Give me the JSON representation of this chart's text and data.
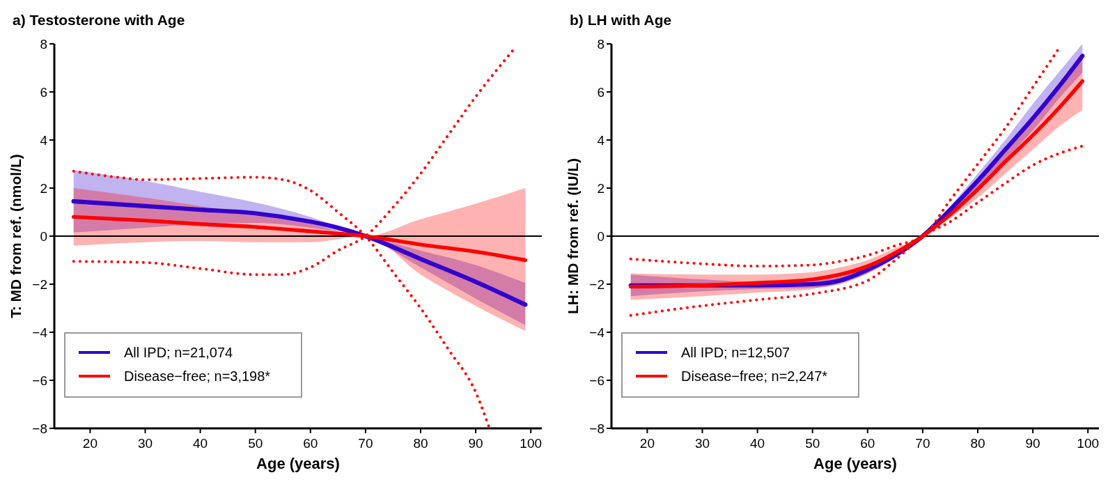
{
  "chart_data": [
    {
      "type": "line",
      "title": "a) Testosterone with Age",
      "xlabel": "Age (years)",
      "ylabel": "T: MD from ref. (nmol/L)",
      "xlim": [
        13.5,
        102
      ],
      "xticks": [
        20,
        30,
        40,
        50,
        60,
        70,
        80,
        90,
        100
      ],
      "ylim": [
        -8,
        8
      ],
      "yticks": [
        -8,
        -6,
        -4,
        -2,
        0,
        2,
        4,
        6,
        8
      ],
      "grid": false,
      "legend": "bottom left",
      "ref_lines": [
        {
          "axis": "y",
          "value": 0,
          "color": "#000000"
        }
      ],
      "series": [
        {
          "name": "All IPD; n=21,074",
          "color": "#3300cc",
          "line_style": "solid",
          "x": [
            17,
            30,
            40,
            50,
            60,
            65,
            70,
            80,
            90,
            99
          ],
          "values": [
            1.45,
            1.25,
            1.1,
            0.95,
            0.6,
            0.35,
            0,
            -0.95,
            -1.9,
            -2.85
          ],
          "lower": [
            0.15,
            0.35,
            0.5,
            0.55,
            0.35,
            0.2,
            0,
            -0.6,
            -1.2,
            -1.95
          ],
          "upper": [
            2.75,
            2.3,
            1.85,
            1.4,
            0.8,
            0.4,
            0,
            -1.3,
            -2.6,
            -3.7
          ]
        },
        {
          "name": "Disease−free; n=3,198*",
          "color": "#ff0000",
          "line_style": "solid",
          "x": [
            17,
            30,
            40,
            50,
            60,
            70,
            80,
            90,
            99
          ],
          "values": [
            0.8,
            0.65,
            0.5,
            0.38,
            0.2,
            0,
            -0.35,
            -0.65,
            -1.0
          ],
          "lower": [
            -0.4,
            -0.25,
            -0.2,
            -0.25,
            -0.25,
            0,
            -1.6,
            -2.9,
            -3.95
          ],
          "upper": [
            2.0,
            1.6,
            1.25,
            0.9,
            0.5,
            0,
            0.7,
            1.35,
            2.0
          ]
        },
        {
          "color": "#ff0000",
          "line_style": "dotted",
          "x": [
            17,
            25,
            30,
            40,
            50,
            55,
            60,
            65,
            70,
            75,
            80,
            85,
            90,
            92.5
          ],
          "values": [
            2.7,
            2.45,
            2.35,
            2.4,
            2.45,
            2.35,
            1.9,
            1.0,
            0,
            -1.5,
            -3.0,
            -4.7,
            -6.5,
            -8
          ]
        },
        {
          "color": "#ff0000",
          "line_style": "dotted",
          "x": [
            17,
            30,
            40,
            50,
            55,
            60,
            65,
            70,
            75,
            80,
            85,
            90,
            97
          ],
          "values": [
            -1.05,
            -1.1,
            -1.35,
            -1.6,
            -1.6,
            -1.3,
            -0.6,
            0,
            1.2,
            2.6,
            4.2,
            5.8,
            7.8
          ]
        }
      ]
    },
    {
      "type": "line",
      "title": "b) LH with Age",
      "xlabel": "Age (years)",
      "ylabel": "LH: MD from ref. (IU/L)",
      "xlim": [
        13.5,
        102
      ],
      "xticks": [
        20,
        30,
        40,
        50,
        60,
        70,
        80,
        90,
        100
      ],
      "ylim": [
        -8,
        8
      ],
      "yticks": [
        -8,
        -6,
        -4,
        -2,
        0,
        2,
        4,
        6,
        8
      ],
      "grid": false,
      "legend": "bottom left",
      "ref_lines": [
        {
          "axis": "y",
          "value": 0,
          "color": "#000000"
        }
      ],
      "series": [
        {
          "name": "All IPD; n=12,507",
          "color": "#3300cc",
          "line_style": "solid",
          "x": [
            17,
            30,
            40,
            50,
            55,
            60,
            65,
            70,
            75,
            80,
            85,
            90,
            95,
            99
          ],
          "values": [
            -2.05,
            -2.05,
            -2.05,
            -2.0,
            -1.85,
            -1.4,
            -0.8,
            0,
            1.1,
            2.3,
            3.6,
            4.9,
            6.3,
            7.5
          ],
          "lower": [
            -2.5,
            -2.3,
            -2.2,
            -2.15,
            -2.0,
            -1.55,
            -0.9,
            0,
            0.95,
            2.0,
            3.2,
            4.4,
            5.8,
            6.8
          ],
          "upper": [
            -1.6,
            -1.8,
            -1.9,
            -1.85,
            -1.7,
            -1.3,
            -0.7,
            0,
            1.25,
            2.6,
            4.0,
            5.5,
            6.9,
            8.0
          ]
        },
        {
          "name": "Disease−free; n=2,247*",
          "color": "#ff0000",
          "line_style": "solid",
          "x": [
            17,
            30,
            40,
            50,
            55,
            60,
            65,
            70,
            75,
            80,
            85,
            90,
            95,
            99
          ],
          "values": [
            -2.1,
            -2.05,
            -1.95,
            -1.8,
            -1.6,
            -1.25,
            -0.7,
            0,
            0.9,
            1.95,
            3.1,
            4.2,
            5.4,
            6.45
          ],
          "lower": [
            -2.65,
            -2.5,
            -2.35,
            -2.2,
            -1.95,
            -1.55,
            -0.9,
            0,
            0.75,
            1.6,
            2.6,
            3.6,
            4.6,
            5.25
          ],
          "upper": [
            -1.55,
            -1.6,
            -1.6,
            -1.5,
            -1.3,
            -1.0,
            -0.5,
            0,
            1.05,
            2.2,
            3.5,
            4.8,
            6.2,
            7.4
          ]
        },
        {
          "color": "#ff0000",
          "line_style": "dotted",
          "x": [
            17,
            30,
            40,
            50,
            55,
            60,
            65,
            70,
            75,
            80,
            85,
            90,
            95
          ],
          "values": [
            -0.95,
            -1.15,
            -1.25,
            -1.2,
            -1.05,
            -0.8,
            -0.4,
            0,
            1.5,
            3.0,
            4.5,
            6.2,
            7.9
          ]
        },
        {
          "color": "#ff0000",
          "line_style": "dotted",
          "x": [
            17,
            30,
            40,
            50,
            60,
            65,
            70,
            75,
            80,
            85,
            90,
            99
          ],
          "values": [
            -3.3,
            -2.9,
            -2.65,
            -2.4,
            -1.85,
            -1.0,
            0,
            0.6,
            1.4,
            2.2,
            2.95,
            3.75
          ]
        }
      ]
    }
  ]
}
